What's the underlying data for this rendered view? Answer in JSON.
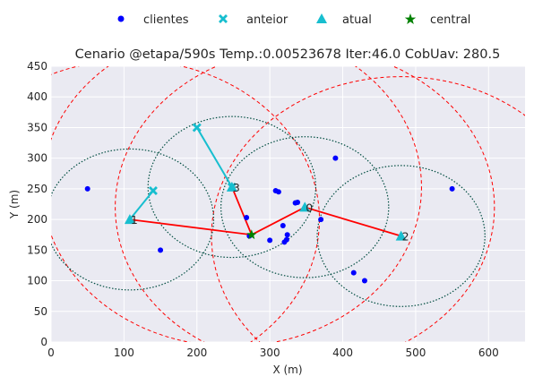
{
  "chart_data": {
    "type": "scatter",
    "title": "Cenario @etapa/590s Temp.:0.00523678 Iter:46.0 CobUav: 280.5",
    "xlabel": "X (m)",
    "ylabel": "Y (m)",
    "xlim": [
      0,
      650
    ],
    "ylim": [
      0,
      450
    ],
    "xticks": [
      0,
      100,
      200,
      300,
      400,
      500,
      600
    ],
    "yticks": [
      0,
      50,
      100,
      150,
      200,
      250,
      300,
      350,
      400,
      450
    ],
    "grid": true,
    "legend_position": "top-center",
    "legend": [
      {
        "label": "clientes",
        "marker": "circle",
        "color": "#0000ff"
      },
      {
        "label": "anteior",
        "marker": "x",
        "color": "#17becf"
      },
      {
        "label": "atual",
        "marker": "triangle",
        "color": "#17becf"
      },
      {
        "label": "central",
        "marker": "star",
        "color": "#008000"
      }
    ],
    "clientes": [
      [
        50,
        250
      ],
      [
        150,
        150
      ],
      [
        268,
        203
      ],
      [
        272,
        173
      ],
      [
        300,
        166
      ],
      [
        308,
        247
      ],
      [
        312,
        245
      ],
      [
        318,
        190
      ],
      [
        320,
        163
      ],
      [
        323,
        167
      ],
      [
        324,
        175
      ],
      [
        335,
        227
      ],
      [
        338,
        228
      ],
      [
        370,
        200
      ],
      [
        390,
        300
      ],
      [
        415,
        113
      ],
      [
        430,
        100
      ],
      [
        550,
        250
      ]
    ],
    "anteior": [
      [
        140,
        247
      ],
      [
        200,
        350
      ],
      [
        248,
        253
      ]
    ],
    "atual": [
      {
        "label": "1",
        "x": 108,
        "y": 200
      },
      {
        "label": "3",
        "x": 248,
        "y": 253
      },
      {
        "label": "0",
        "x": 348,
        "y": 220
      },
      {
        "label": "2",
        "x": 480,
        "y": 173
      }
    ],
    "central": [
      275,
      175
    ],
    "movement_lines": [
      [
        [
          140,
          247
        ],
        [
          108,
          200
        ]
      ],
      [
        [
          200,
          350
        ],
        [
          248,
          253
        ]
      ]
    ],
    "links_path": [
      [
        108,
        200
      ],
      [
        275,
        175
      ],
      [
        248,
        253
      ],
      [
        275,
        175
      ],
      [
        348,
        220
      ],
      [
        480,
        173
      ]
    ],
    "coverage_radius": 115,
    "link_radius": 260,
    "colors": {
      "plot_bg": "#eaeaf2",
      "grid": "#ffffff",
      "clientes": "#0000ff",
      "uav": "#17becf",
      "central": "#008000",
      "links": "#ff0000",
      "coverage_circle": "#004d40",
      "link_circle": "#ff0000"
    }
  }
}
